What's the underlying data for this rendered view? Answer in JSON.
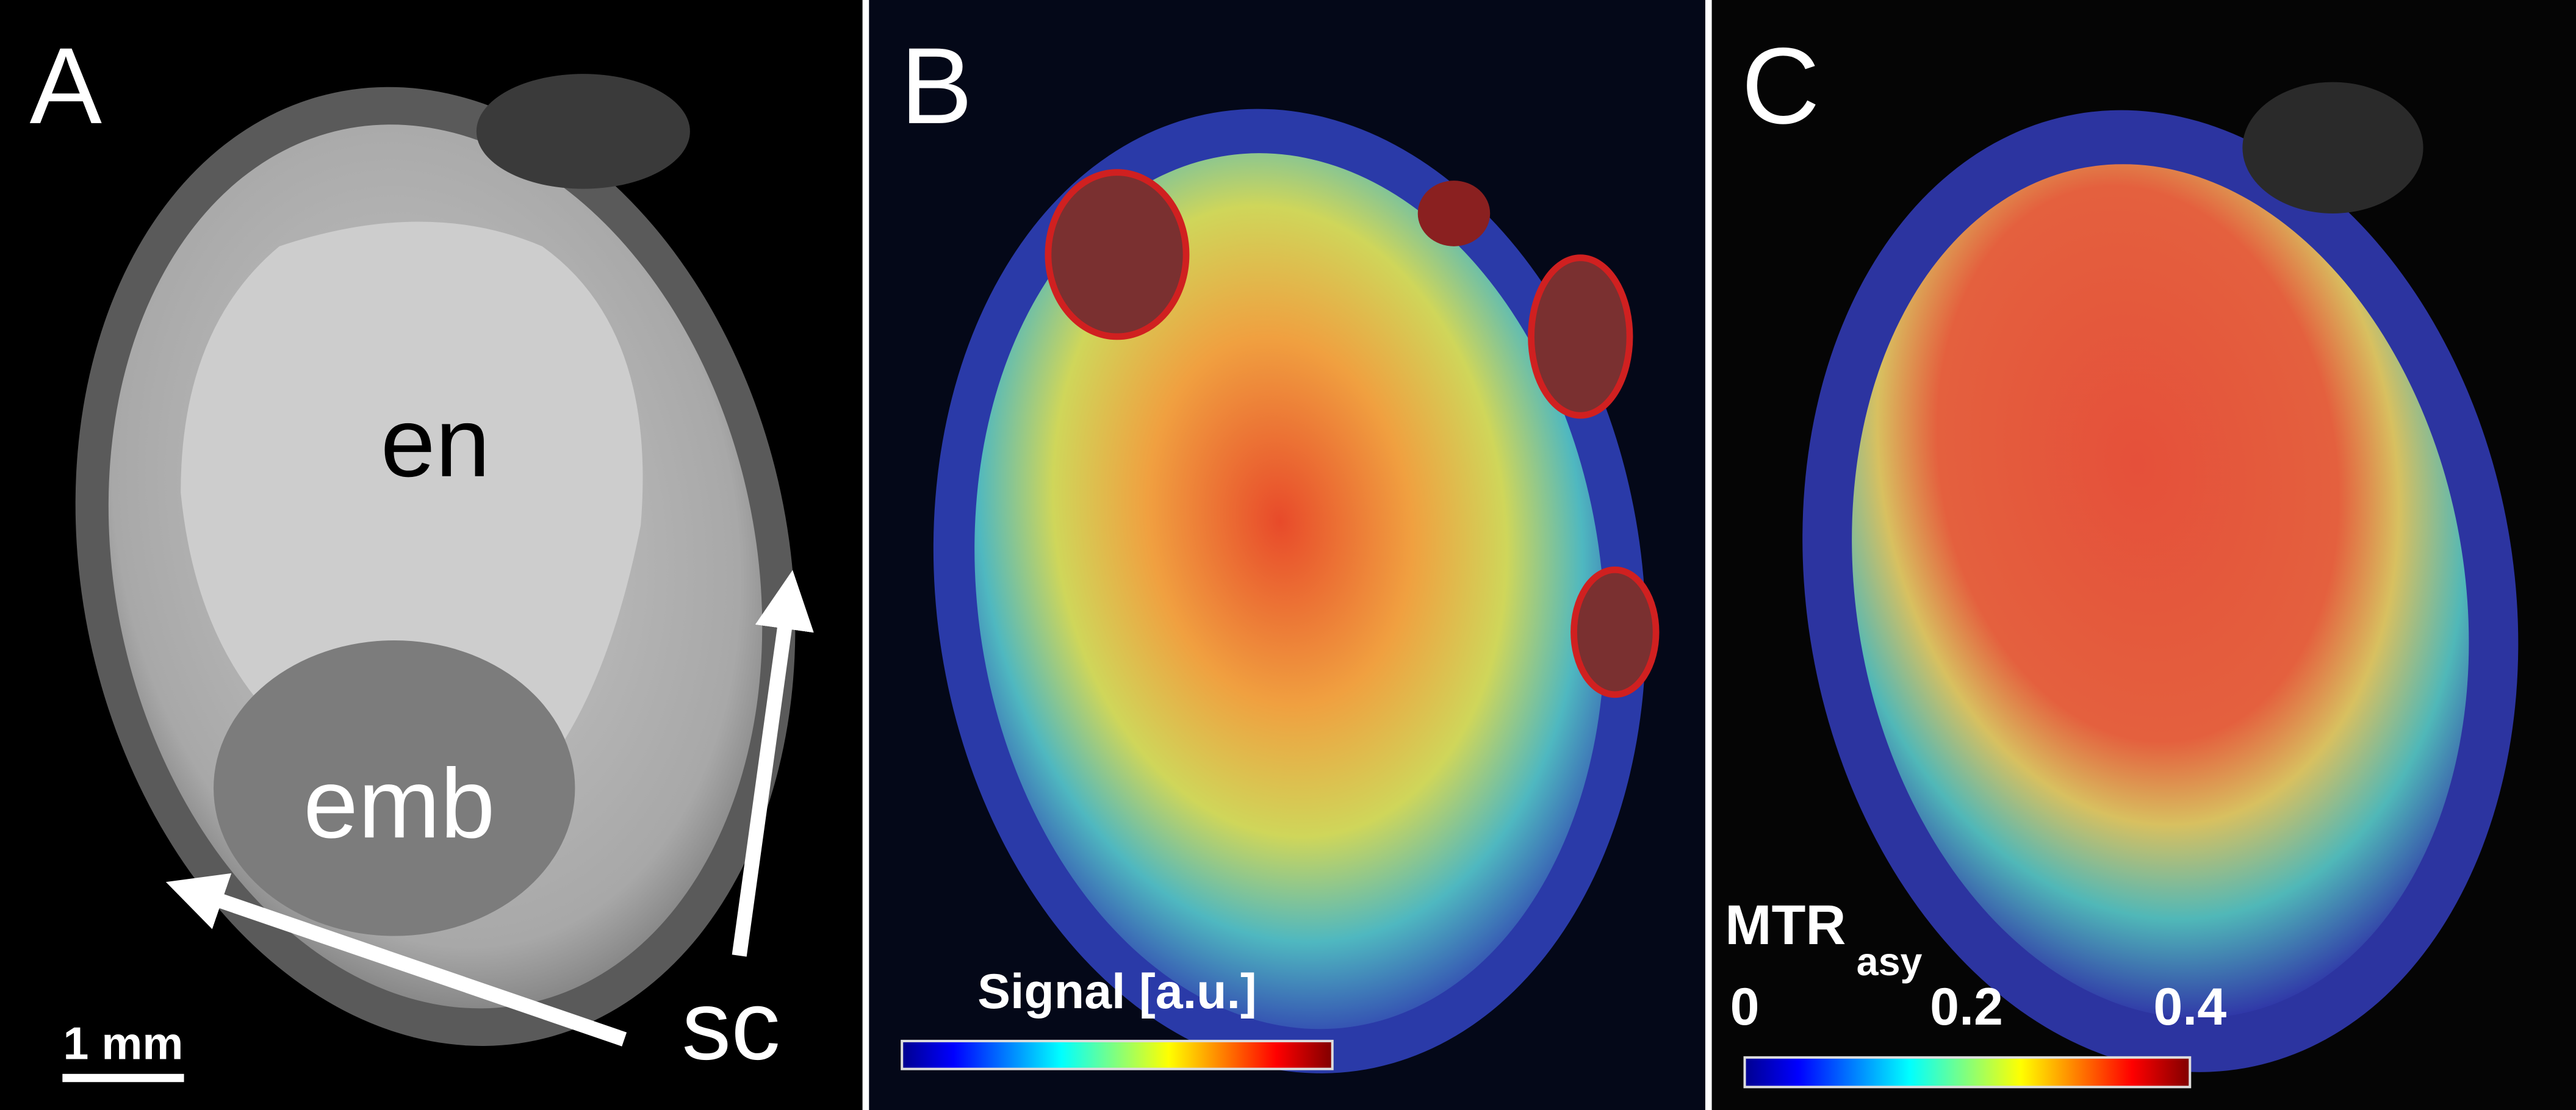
{
  "panels": [
    {
      "label": "A",
      "annotations": [
        "en",
        "emb",
        "sc"
      ],
      "scale_bar": "1 mm"
    },
    {
      "label": "B",
      "colorbar": {
        "title": "Signal [a.u.]"
      }
    },
    {
      "label": "C",
      "colorbar": {
        "title": "MTR",
        "title_subscript": "asy",
        "ticks": [
          "0",
          "0.2",
          "0.4"
        ]
      }
    }
  ]
}
